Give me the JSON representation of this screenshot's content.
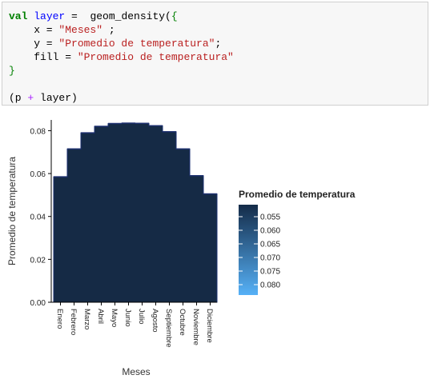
{
  "code": {
    "kw_val": "val",
    "var_layer": "layer",
    "eq": " = ",
    "fn_call": " geom_density(",
    "open_brace": "{",
    "line2_key": "    x = ",
    "line2_val": "\"Meses\"",
    "line2_end": " ;",
    "line3_key": "    y = ",
    "line3_val": "\"Promedio de temperatura\"",
    "line3_end": ";",
    "line4_key": "    fill = ",
    "line4_val": "\"Promedio de temperatura\"",
    "close_brace": "}",
    "line7_open": "(p ",
    "line7_plus": "+",
    "line7_close": " layer)"
  },
  "chart_data": {
    "type": "area",
    "xlabel": "Meses",
    "ylabel": "Promedio de temperatura",
    "categories": [
      "Enero",
      "Febrero",
      "Marzo",
      "Abril",
      "Mayo",
      "Junio",
      "Julio",
      "Agosto",
      "Septiembre",
      "Octubre",
      "Noviembre",
      "Diciembre"
    ],
    "values": [
      0.0585,
      0.0715,
      0.079,
      0.082,
      0.0833,
      0.0835,
      0.0834,
      0.0823,
      0.0795,
      0.0715,
      0.059,
      0.0505
    ],
    "yticks": [
      "0.00",
      "0.02",
      "0.04",
      "0.06",
      "0.08"
    ],
    "ylim": [
      0,
      0.085
    ],
    "fill_color": "#152a45",
    "legend": {
      "title": "Promedio de temperatura",
      "position": "right",
      "labels": [
        "0.055",
        "0.060",
        "0.065",
        "0.070",
        "0.075",
        "0.080"
      ],
      "color_low": "#142b48",
      "color_high": "#56b1f7"
    }
  }
}
